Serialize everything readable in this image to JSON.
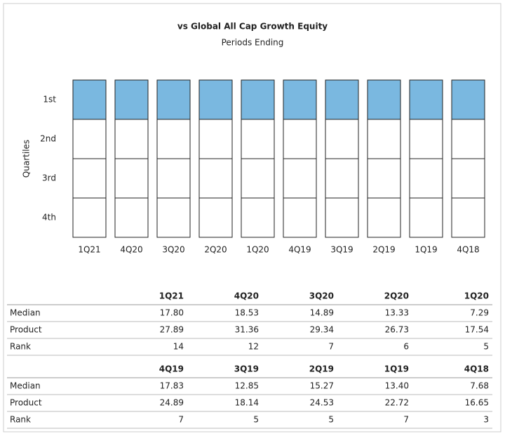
{
  "chart_data": {
    "type": "quartile",
    "title": "vs Global All Cap Growth Equity",
    "subtitle": "Periods Ending",
    "y_label": "Quartiles",
    "quartiles": [
      "1st",
      "2nd",
      "3rd",
      "4th"
    ],
    "categories": [
      "1Q21",
      "4Q20",
      "3Q20",
      "2Q20",
      "1Q20",
      "4Q19",
      "3Q19",
      "2Q19",
      "1Q19",
      "4Q18"
    ],
    "color": "#7ab8e0"
  },
  "table": {
    "blocks": [
      {
        "header": [
          "1Q21",
          "4Q20",
          "3Q20",
          "2Q20",
          "1Q20"
        ],
        "rows": [
          {
            "label": "Median",
            "values": [
              "17.80",
              "18.53",
              "14.89",
              "13.33",
              "7.29"
            ]
          },
          {
            "label": "Product",
            "values": [
              "27.89",
              "31.36",
              "29.34",
              "26.73",
              "17.54"
            ]
          },
          {
            "label": "Rank",
            "values": [
              14,
              12,
              7,
              6,
              5
            ]
          }
        ]
      },
      {
        "header": [
          "4Q19",
          "3Q19",
          "2Q19",
          "1Q19",
          "4Q18"
        ],
        "rows": [
          {
            "label": "Median",
            "values": [
              "17.83",
              "12.85",
              "15.27",
              "13.40",
              "7.68"
            ]
          },
          {
            "label": "Product",
            "values": [
              "24.89",
              "18.14",
              "24.53",
              "22.72",
              "16.65"
            ]
          },
          {
            "label": "Rank",
            "values": [
              7,
              5,
              5,
              7,
              3
            ]
          }
        ]
      }
    ]
  }
}
